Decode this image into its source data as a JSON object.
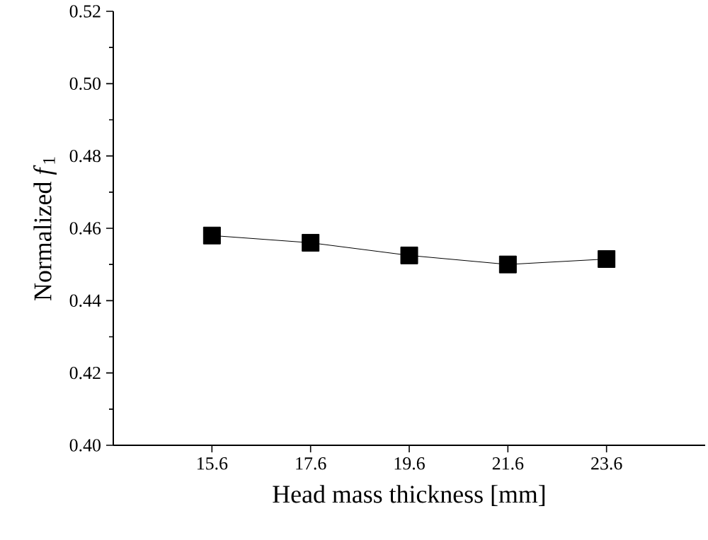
{
  "chart_data": {
    "type": "line",
    "xlabel": "Head mass thickness [mm]",
    "ylabel": "Normalized *f*$_{1}$",
    "x": [
      15.6,
      17.6,
      19.6,
      21.6,
      23.6
    ],
    "series": [
      {
        "color": "#000000",
        "values": [
          0.458,
          0.456,
          0.4525,
          0.45,
          0.4515
        ]
      }
    ],
    "xlim": [
      13.6,
      25.6
    ],
    "xticks": [
      15.6,
      17.6,
      19.6,
      21.6,
      23.6
    ],
    "ylim": [
      0.4,
      0.52
    ],
    "yticks": [
      {
        "value": 0.4,
        "label": "0.40"
      },
      {
        "value": 0.42,
        "label": "0.42"
      },
      {
        "value": 0.44,
        "label": "0.44"
      },
      {
        "value": 0.46,
        "label": "0.46"
      },
      {
        "value": 0.48,
        "label": "0.48"
      },
      {
        "value": 0.5,
        "label": "0.50"
      },
      {
        "value": 0.52,
        "label": "0.52"
      }
    ],
    "marker": "square",
    "line_style": "solid"
  }
}
